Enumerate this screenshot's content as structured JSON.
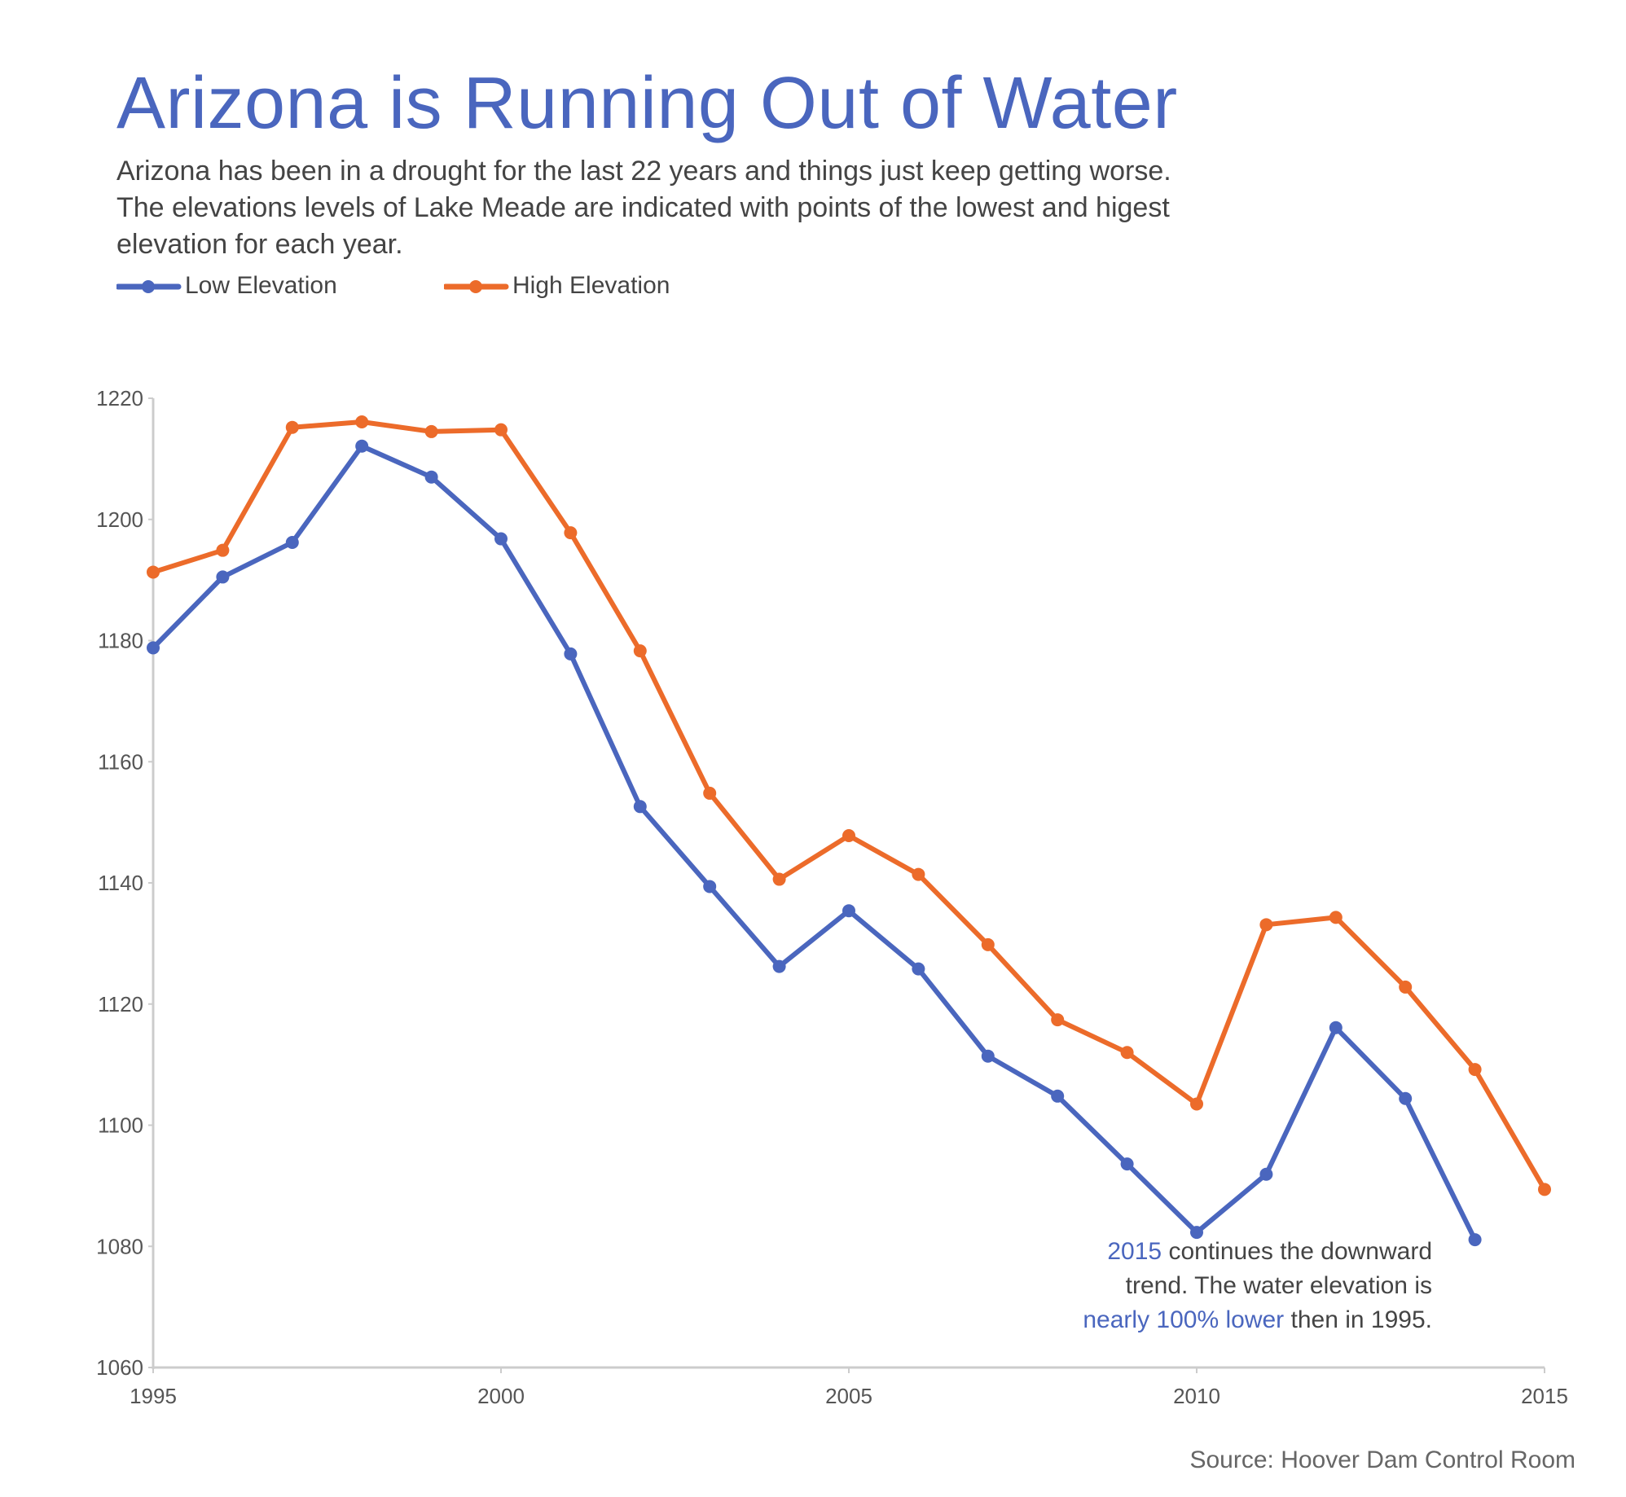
{
  "header": {
    "title": "Arizona is Running Out of Water",
    "subtitle_lines": [
      "Arizona has been in a drought for the last 22 years and things just keep getting worse.",
      "The elevations levels of Lake Meade are indicated with points of the lowest and higest",
      "elevation for each year."
    ]
  },
  "annotation": {
    "part1": "2015",
    "part2": " continues the downward",
    "part3": "trend. The water elevation is",
    "part4": "nearly 100% lower",
    "part5": " then in 1995."
  },
  "source": "Source: Hoover Dam Control Room",
  "colors": {
    "low": "#4a66be",
    "high": "#ec6b2a",
    "title": "#4a66be",
    "axis": "#cccccc"
  },
  "chart_data": {
    "type": "line",
    "title": "Arizona is Running Out of Water",
    "xlabel": "",
    "ylabel": "",
    "xlim": [
      1995,
      2015
    ],
    "ylim": [
      1060,
      1220
    ],
    "x_ticks": [
      1995,
      2000,
      2005,
      2010,
      2015
    ],
    "y_ticks": [
      1060,
      1080,
      1100,
      1120,
      1140,
      1160,
      1180,
      1200,
      1220
    ],
    "grid": false,
    "legend_position": "top-left",
    "series": [
      {
        "name": "Low Elevation",
        "color": "#4a66be",
        "x": [
          1995,
          1996,
          1997,
          1998,
          1999,
          2000,
          2001,
          2002,
          2003,
          2004,
          2005,
          2006,
          2007,
          2008,
          2009,
          2010,
          2011,
          2012,
          2013,
          2014
        ],
        "values": [
          1178.8,
          1190.5,
          1196.2,
          1212.1,
          1207.0,
          1196.8,
          1177.8,
          1152.6,
          1139.4,
          1126.2,
          1135.4,
          1125.8,
          1111.4,
          1104.8,
          1093.6,
          1082.3,
          1091.9,
          1116.1,
          1104.4,
          1081.1
        ]
      },
      {
        "name": "High Elevation",
        "color": "#ec6b2a",
        "x": [
          1995,
          1996,
          1997,
          1998,
          1999,
          2000,
          2001,
          2002,
          2003,
          2004,
          2005,
          2006,
          2007,
          2008,
          2009,
          2010,
          2011,
          2012,
          2013,
          2014,
          2015
        ],
        "values": [
          1191.3,
          1194.9,
          1215.2,
          1216.1,
          1214.5,
          1214.8,
          1197.8,
          1178.3,
          1154.8,
          1140.6,
          1147.8,
          1141.4,
          1129.8,
          1117.4,
          1112.0,
          1103.5,
          1133.1,
          1134.3,
          1122.8,
          1109.2,
          1089.4
        ]
      }
    ]
  }
}
